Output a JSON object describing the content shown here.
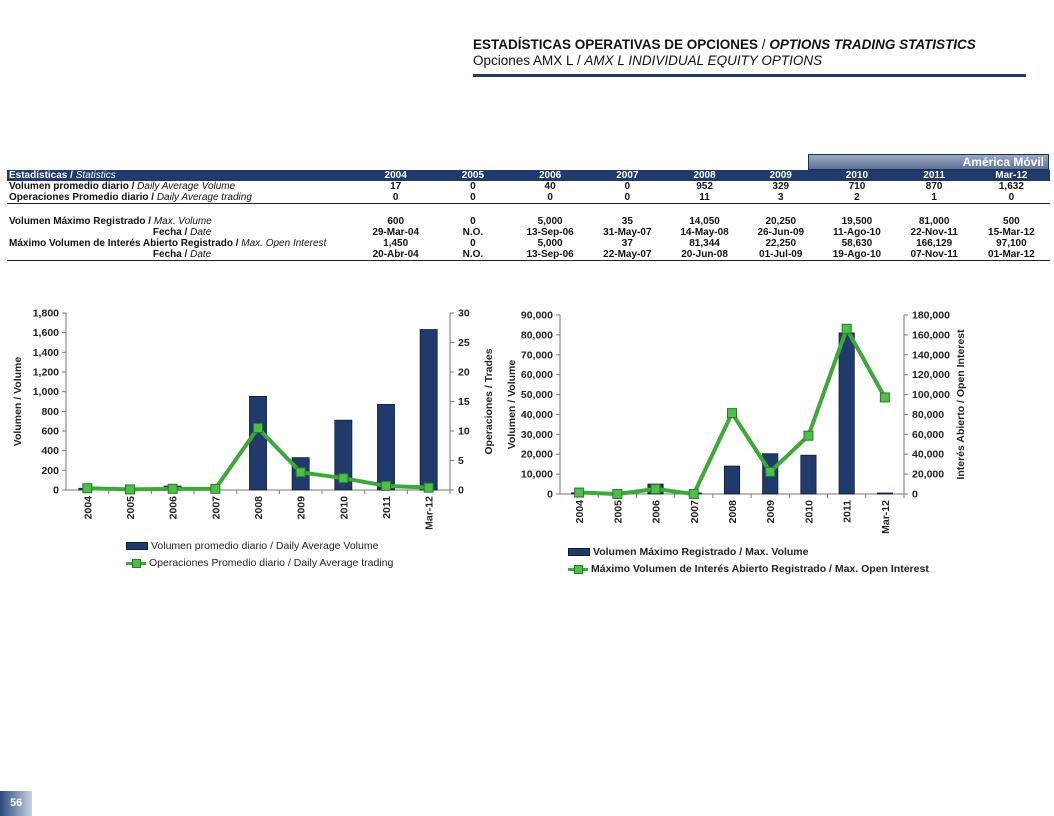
{
  "header": {
    "title_es": "ESTADÍSTICAS OPERATIVAS DE OPCIONES",
    "title_sep": " / ",
    "title_en": "OPTIONS TRADING STATISTICS",
    "subtitle_es": "Opciones AMX L",
    "subtitle_sep": " / ",
    "subtitle_en": "AMX L INDIVIDUAL EQUITY OPTIONS"
  },
  "brand": "América Móvil",
  "table": {
    "header_label_es": "Estadísticas / ",
    "header_label_en": "Statistics",
    "years": [
      "2004",
      "2005",
      "2006",
      "2007",
      "2008",
      "2009",
      "2010",
      "2011",
      "Mar-12"
    ],
    "rows": [
      {
        "es": "Volumen promedio diario / ",
        "en": "Daily Average Volume",
        "values": [
          "17",
          "0",
          "40",
          "0",
          "952",
          "329",
          "710",
          "870",
          "1,632"
        ]
      },
      {
        "es": "Operaciones Promedio diario / ",
        "en": "Daily Average trading",
        "values": [
          "0",
          "0",
          "0",
          "0",
          "11",
          "3",
          "2",
          "1",
          "0"
        ]
      },
      {
        "es": "Volumen Máximo Registrado / ",
        "en": "Max. Volume",
        "values": [
          "600",
          "0",
          "5,000",
          "35",
          "14,050",
          "20,250",
          "19,500",
          "81,000",
          "500"
        ]
      },
      {
        "es": "Fecha / ",
        "en": "Date",
        "values": [
          "29-Mar-04",
          "N.O.",
          "13-Sep-06",
          "31-May-07",
          "14-May-08",
          "26-Jun-09",
          "11-Ago-10",
          "22-Nov-11",
          "15-Mar-12"
        ]
      },
      {
        "es": "Máximo Volumen de Interés Abierto Registrado / ",
        "en": "Max. Open Interest",
        "values": [
          "1,450",
          "0",
          "5,000",
          "37",
          "81,344",
          "22,250",
          "58,630",
          "166,129",
          "97,100"
        ]
      },
      {
        "es": "Fecha / ",
        "en": "Date",
        "values": [
          "20-Abr-04",
          "N.O.",
          "13-Sep-06",
          "22-May-07",
          "20-Jun-08",
          "01-Jul-09",
          "19-Ago-10",
          "07-Nov-11",
          "01-Mar-12"
        ]
      }
    ]
  },
  "chart_data": [
    {
      "type": "bar",
      "categories": [
        "2004",
        "2005",
        "2006",
        "2007",
        "2008",
        "2009",
        "2010",
        "2011",
        "Mar-12"
      ],
      "series": [
        {
          "name": "Volumen promedio diario / Daily Average Volume",
          "type": "bar",
          "axis": "left",
          "values": [
            17,
            0,
            40,
            0,
            952,
            329,
            710,
            870,
            1632
          ]
        },
        {
          "name": "Operaciones Promedio diario / Daily Average trading",
          "type": "line",
          "axis": "right",
          "values": [
            0.3,
            0.1,
            0.2,
            0.2,
            10.5,
            3,
            2,
            0.7,
            0.4
          ]
        }
      ],
      "ylabel": "Volumen / Volume",
      "y2label": "Operaciones / Trades",
      "ylim": [
        0,
        1800
      ],
      "y2lim": [
        0,
        30
      ],
      "yticks": [
        "0",
        "200",
        "400",
        "600",
        "800",
        "1,000",
        "1,200",
        "1,400",
        "1,600",
        "1,800"
      ],
      "y2ticks": [
        "0",
        "5",
        "10",
        "15",
        "20",
        "25",
        "30"
      ],
      "bar_color": "#1f3a6b",
      "line_color": "#3ea83a",
      "legend_position": "bottom"
    },
    {
      "type": "bar",
      "categories": [
        "2004",
        "2005",
        "2006",
        "2007",
        "2008",
        "2009",
        "2010",
        "2011",
        "Mar-12"
      ],
      "series": [
        {
          "name": "Volumen Máximo Registrado  / Max. Volume",
          "type": "bar",
          "axis": "left",
          "values": [
            600,
            0,
            5000,
            35,
            14050,
            20250,
            19500,
            81000,
            500
          ]
        },
        {
          "name": "Máximo Volumen de Interés Abierto Registrado  / Max. Open Interest",
          "type": "line",
          "axis": "right",
          "values": [
            1450,
            0,
            5000,
            37,
            81344,
            22250,
            58630,
            166129,
            97100
          ]
        }
      ],
      "ylabel": "Volumen / Volume",
      "y2label": "Interés Abierto / Open Interest",
      "ylim": [
        0,
        90000
      ],
      "y2lim": [
        0,
        180000
      ],
      "yticks": [
        "0",
        "10,000",
        "20,000",
        "30,000",
        "40,000",
        "50,000",
        "60,000",
        "70,000",
        "80,000",
        "90,000"
      ],
      "y2ticks": [
        "0",
        "20,000",
        "40,000",
        "60,000",
        "80,000",
        "100,000",
        "120,000",
        "140,000",
        "160,000",
        "180,000"
      ],
      "bar_color": "#1f3a6b",
      "line_color": "#3ea83a",
      "legend_position": "bottom"
    }
  ],
  "page_number": "56"
}
